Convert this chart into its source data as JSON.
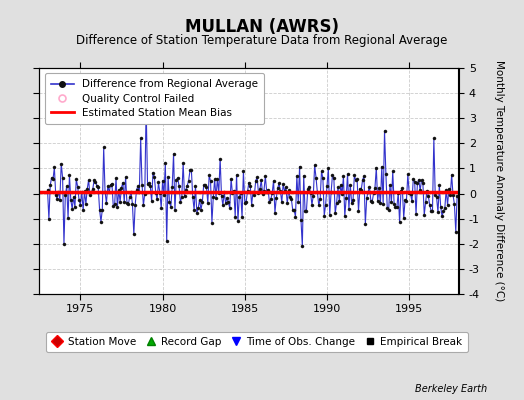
{
  "title": "MULLAN (AWRS)",
  "subtitle": "Difference of Station Temperature Data from Regional Average",
  "ylabel_right": "Monthly Temperature Anomaly Difference (°C)",
  "bias": 0.05,
  "xlim": [
    1972.5,
    1998.0
  ],
  "ylim": [
    -4,
    5
  ],
  "yticks": [
    -4,
    -3,
    -2,
    -1,
    0,
    1,
    2,
    3,
    4,
    5
  ],
  "xticks": [
    1975,
    1980,
    1985,
    1990,
    1995
  ],
  "background_color": "#e0e0e0",
  "plot_bg_color": "#ffffff",
  "line_color": "#3333cc",
  "bias_color": "#ff0000",
  "marker_color": "#111111",
  "title_fontsize": 12,
  "subtitle_fontsize": 8.5,
  "tick_fontsize": 8,
  "legend_fontsize": 7.5,
  "berkeley_earth_text": "Berkeley Earth",
  "seed": 17,
  "start_year": 1973.0,
  "end_year": 1997.917
}
